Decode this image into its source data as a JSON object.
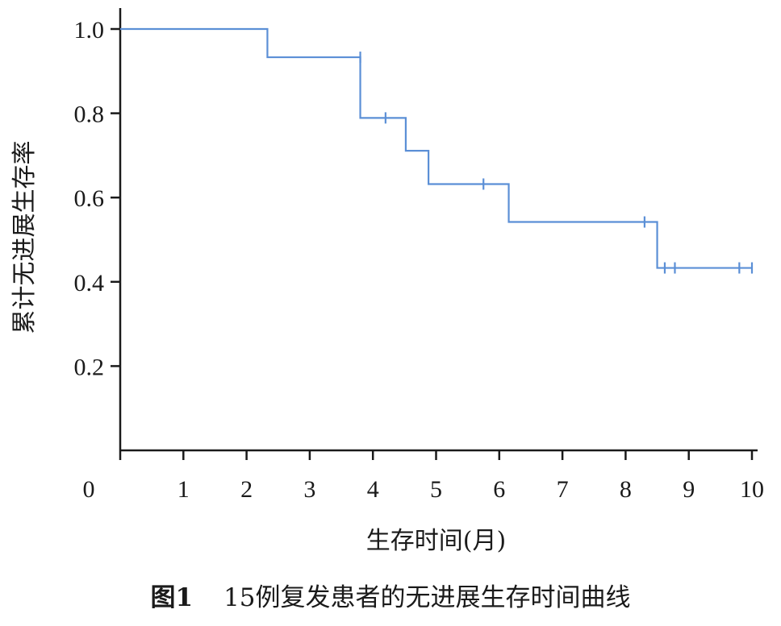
{
  "chart_data": {
    "type": "line",
    "xlabel": "生存时间(月)",
    "ylabel": "累计无进展生存率",
    "xlim": [
      0,
      10
    ],
    "ylim": [
      0,
      1.0
    ],
    "x_ticks": [
      0,
      1,
      2,
      3,
      4,
      5,
      6,
      7,
      8,
      9,
      10
    ],
    "x_tick_labels": [
      "0",
      "1",
      "2",
      "3",
      "4",
      "5",
      "6",
      "7",
      "8",
      "9",
      "10"
    ],
    "y_ticks": [
      0.2,
      0.4,
      0.6,
      0.8,
      1.0
    ],
    "y_tick_labels": [
      "0.2",
      "0.4",
      "0.6",
      "0.8",
      "1.0"
    ],
    "grid": false,
    "line_color": "#5b8fd6",
    "series": [
      {
        "step": "post",
        "x": [
          0,
          2.33,
          3.8,
          4.52,
          4.88,
          6.15,
          8.5,
          10.0
        ],
        "y": [
          1.0,
          0.933,
          0.789,
          0.711,
          0.632,
          0.542,
          0.433,
          0.433
        ],
        "censored_x": [
          3.8,
          4.2,
          5.75,
          8.3,
          8.62,
          8.78,
          9.8,
          10.0
        ],
        "censored_y": [
          0.933,
          0.789,
          0.632,
          0.542,
          0.433,
          0.433,
          0.433,
          0.433
        ]
      }
    ]
  },
  "caption": {
    "figure_number": "图1",
    "text": "15例复发患者的无进展生存时间曲线"
  }
}
